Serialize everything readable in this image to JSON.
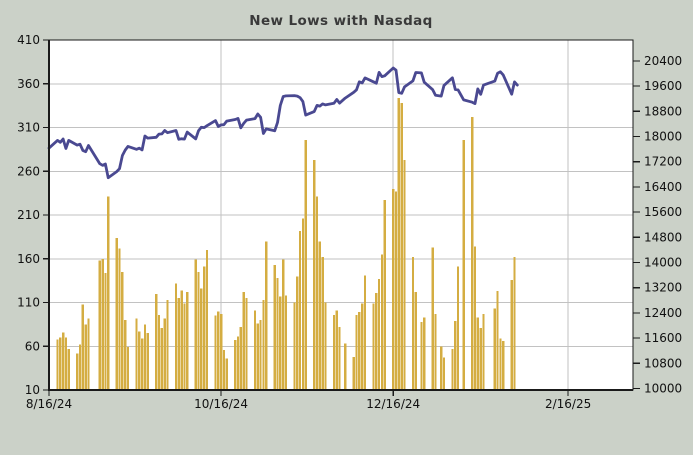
{
  "title": "New Lows with Nasdaq",
  "colors": {
    "background": "#cbd1c8",
    "plot_background": "#ffffff",
    "grid": "#c2c2c2",
    "axis": "#1a1a1a",
    "title_text": "#3a3a3a",
    "tick_text": "#111111",
    "bar": "#d4ad42",
    "line": "#4a4991"
  },
  "chart_data": {
    "type": "combo",
    "title": "New Lows with Nasdaq",
    "grid": true,
    "legend_position": "none",
    "x_axis": {
      "start": "2024-08-16",
      "end": "2025-03-11",
      "tick_labels": [
        "8/16/24",
        "10/16/24",
        "12/16/24",
        "2/16/25"
      ],
      "tick_dates": [
        "2024-08-16",
        "2024-10-16",
        "2024-12-16",
        "2025-02-16"
      ]
    },
    "left_axis": {
      "min": 10,
      "max": 410,
      "ticks": [
        410,
        360,
        310,
        260,
        210,
        160,
        110,
        60,
        10
      ]
    },
    "right_axis": {
      "plot_min": 9952,
      "plot_max": 21063,
      "ticks": [
        20400,
        19600,
        18800,
        18000,
        17200,
        16400,
        15600,
        14800,
        14000,
        13200,
        12400,
        11600,
        10800,
        10000
      ]
    },
    "series": [
      {
        "name": "New Lows",
        "type": "bar",
        "axis": "left",
        "points": [
          [
            "2024-08-19",
            68
          ],
          [
            "2024-08-20",
            70
          ],
          [
            "2024-08-21",
            76
          ],
          [
            "2024-08-22",
            70
          ],
          [
            "2024-08-23",
            57
          ],
          [
            "2024-08-26",
            52
          ],
          [
            "2024-08-27",
            62
          ],
          [
            "2024-08-28",
            108
          ],
          [
            "2024-08-29",
            85
          ],
          [
            "2024-08-30",
            92
          ],
          [
            "2024-09-03",
            158
          ],
          [
            "2024-09-04",
            160
          ],
          [
            "2024-09-05",
            144
          ],
          [
            "2024-09-06",
            231
          ],
          [
            "2024-09-09",
            184
          ],
          [
            "2024-09-10",
            172
          ],
          [
            "2024-09-11",
            145
          ],
          [
            "2024-09-12",
            90
          ],
          [
            "2024-09-13",
            59
          ],
          [
            "2024-09-16",
            92
          ],
          [
            "2024-09-17",
            77
          ],
          [
            "2024-09-18",
            69
          ],
          [
            "2024-09-19",
            85
          ],
          [
            "2024-09-20",
            75
          ],
          [
            "2024-09-23",
            120
          ],
          [
            "2024-09-24",
            96
          ],
          [
            "2024-09-25",
            81
          ],
          [
            "2024-09-26",
            92
          ],
          [
            "2024-09-27",
            113
          ],
          [
            "2024-09-30",
            132
          ],
          [
            "2024-10-01",
            115
          ],
          [
            "2024-10-02",
            124
          ],
          [
            "2024-10-03",
            109
          ],
          [
            "2024-10-04",
            122
          ],
          [
            "2024-10-07",
            159
          ],
          [
            "2024-10-08",
            145
          ],
          [
            "2024-10-09",
            126
          ],
          [
            "2024-10-10",
            151
          ],
          [
            "2024-10-11",
            170
          ],
          [
            "2024-10-14",
            95
          ],
          [
            "2024-10-15",
            100
          ],
          [
            "2024-10-16",
            97
          ],
          [
            "2024-10-17",
            56
          ],
          [
            "2024-10-18",
            46
          ],
          [
            "2024-10-21",
            67
          ],
          [
            "2024-10-22",
            71
          ],
          [
            "2024-10-23",
            82
          ],
          [
            "2024-10-24",
            122
          ],
          [
            "2024-10-25",
            115
          ],
          [
            "2024-10-28",
            101
          ],
          [
            "2024-10-29",
            86
          ],
          [
            "2024-10-30",
            90
          ],
          [
            "2024-10-31",
            113
          ],
          [
            "2024-11-01",
            180
          ],
          [
            "2024-11-04",
            153
          ],
          [
            "2024-11-05",
            138
          ],
          [
            "2024-11-06",
            117
          ],
          [
            "2024-11-07",
            159
          ],
          [
            "2024-11-08",
            118
          ],
          [
            "2024-11-11",
            110
          ],
          [
            "2024-11-12",
            140
          ],
          [
            "2024-11-13",
            192
          ],
          [
            "2024-11-14",
            206
          ],
          [
            "2024-11-15",
            296
          ],
          [
            "2024-11-18",
            273
          ],
          [
            "2024-11-19",
            231
          ],
          [
            "2024-11-20",
            180
          ],
          [
            "2024-11-21",
            162
          ],
          [
            "2024-11-22",
            110
          ],
          [
            "2024-11-25",
            96
          ],
          [
            "2024-11-26",
            101
          ],
          [
            "2024-11-27",
            82
          ],
          [
            "2024-11-29",
            63
          ],
          [
            "2024-12-02",
            48
          ],
          [
            "2024-12-03",
            96
          ],
          [
            "2024-12-04",
            99
          ],
          [
            "2024-12-05",
            109
          ],
          [
            "2024-12-06",
            141
          ],
          [
            "2024-12-09",
            109
          ],
          [
            "2024-12-10",
            121
          ],
          [
            "2024-12-11",
            137
          ],
          [
            "2024-12-12",
            165
          ],
          [
            "2024-12-13",
            227
          ],
          [
            "2024-12-16",
            240
          ],
          [
            "2024-12-17",
            237
          ],
          [
            "2024-12-18",
            344
          ],
          [
            "2024-12-19",
            338
          ],
          [
            "2024-12-20",
            273
          ],
          [
            "2024-12-23",
            162
          ],
          [
            "2024-12-24",
            122
          ],
          [
            "2024-12-26",
            88
          ],
          [
            "2024-12-27",
            93
          ],
          [
            "2024-12-30",
            173
          ],
          [
            "2024-12-31",
            97
          ],
          [
            "2025-01-02",
            60
          ],
          [
            "2025-01-03",
            47
          ],
          [
            "2025-01-06",
            57
          ],
          [
            "2025-01-07",
            89
          ],
          [
            "2025-01-08",
            151
          ],
          [
            "2025-01-10",
            296
          ],
          [
            "2025-01-13",
            322
          ],
          [
            "2025-01-14",
            174
          ],
          [
            "2025-01-15",
            93
          ],
          [
            "2025-01-16",
            81
          ],
          [
            "2025-01-17",
            97
          ],
          [
            "2025-01-21",
            103
          ],
          [
            "2025-01-22",
            123
          ],
          [
            "2025-01-23",
            69
          ],
          [
            "2025-01-24",
            66
          ],
          [
            "2025-01-27",
            136
          ],
          [
            "2025-01-28",
            162
          ]
        ]
      },
      {
        "name": "Nasdaq",
        "type": "line",
        "axis": "right",
        "points": [
          [
            "2024-08-16",
            17632
          ],
          [
            "2024-08-19",
            17876
          ],
          [
            "2024-08-20",
            17817
          ],
          [
            "2024-08-21",
            17919
          ],
          [
            "2024-08-22",
            17619
          ],
          [
            "2024-08-23",
            17877
          ],
          [
            "2024-08-26",
            17725
          ],
          [
            "2024-08-27",
            17754
          ],
          [
            "2024-08-28",
            17556
          ],
          [
            "2024-08-29",
            17516
          ],
          [
            "2024-08-30",
            17714
          ],
          [
            "2024-09-03",
            17136
          ],
          [
            "2024-09-04",
            17084
          ],
          [
            "2024-09-05",
            17127
          ],
          [
            "2024-09-06",
            16691
          ],
          [
            "2024-09-09",
            16884
          ],
          [
            "2024-09-10",
            16976
          ],
          [
            "2024-09-11",
            17396
          ],
          [
            "2024-09-12",
            17569
          ],
          [
            "2024-09-13",
            17684
          ],
          [
            "2024-09-16",
            17592
          ],
          [
            "2024-09-17",
            17628
          ],
          [
            "2024-09-18",
            17573
          ],
          [
            "2024-09-19",
            18014
          ],
          [
            "2024-09-20",
            17948
          ],
          [
            "2024-09-23",
            17974
          ],
          [
            "2024-09-24",
            18075
          ],
          [
            "2024-09-25",
            18082
          ],
          [
            "2024-09-26",
            18190
          ],
          [
            "2024-09-27",
            18119
          ],
          [
            "2024-09-30",
            18189
          ],
          [
            "2024-10-01",
            17910
          ],
          [
            "2024-10-02",
            17925
          ],
          [
            "2024-10-03",
            17918
          ],
          [
            "2024-10-04",
            18138
          ],
          [
            "2024-10-07",
            17924
          ],
          [
            "2024-10-08",
            18182
          ],
          [
            "2024-10-09",
            18292
          ],
          [
            "2024-10-10",
            18282
          ],
          [
            "2024-10-11",
            18343
          ],
          [
            "2024-10-14",
            18503
          ],
          [
            "2024-10-15",
            18316
          ],
          [
            "2024-10-16",
            18368
          ],
          [
            "2024-10-17",
            18374
          ],
          [
            "2024-10-18",
            18490
          ],
          [
            "2024-10-21",
            18540
          ],
          [
            "2024-10-22",
            18573
          ],
          [
            "2024-10-23",
            18277
          ],
          [
            "2024-10-24",
            18415
          ],
          [
            "2024-10-25",
            18519
          ],
          [
            "2024-10-28",
            18568
          ],
          [
            "2024-10-29",
            18713
          ],
          [
            "2024-10-30",
            18608
          ],
          [
            "2024-10-31",
            18095
          ],
          [
            "2024-11-01",
            18240
          ],
          [
            "2024-11-04",
            18180
          ],
          [
            "2024-11-05",
            18440
          ],
          [
            "2024-11-06",
            18983
          ],
          [
            "2024-11-07",
            19270
          ],
          [
            "2024-11-08",
            19287
          ],
          [
            "2024-11-11",
            19299
          ],
          [
            "2024-11-12",
            19281
          ],
          [
            "2024-11-13",
            19231
          ],
          [
            "2024-11-14",
            19108
          ],
          [
            "2024-11-15",
            18680
          ],
          [
            "2024-11-18",
            18791
          ],
          [
            "2024-11-19",
            18987
          ],
          [
            "2024-11-20",
            18966
          ],
          [
            "2024-11-21",
            19035
          ],
          [
            "2024-11-22",
            19003
          ],
          [
            "2024-11-25",
            19055
          ],
          [
            "2024-11-26",
            19175
          ],
          [
            "2024-11-27",
            19060
          ],
          [
            "2024-11-29",
            19218
          ],
          [
            "2024-12-02",
            19404
          ],
          [
            "2024-12-03",
            19481
          ],
          [
            "2024-12-04",
            19735
          ],
          [
            "2024-12-05",
            19700
          ],
          [
            "2024-12-06",
            19860
          ],
          [
            "2024-12-09",
            19737
          ],
          [
            "2024-12-10",
            19687
          ],
          [
            "2024-12-11",
            20034
          ],
          [
            "2024-12-12",
            19902
          ],
          [
            "2024-12-13",
            19927
          ],
          [
            "2024-12-16",
            20173
          ],
          [
            "2024-12-17",
            20109
          ],
          [
            "2024-12-18",
            19393
          ],
          [
            "2024-12-19",
            19372
          ],
          [
            "2024-12-20",
            19573
          ],
          [
            "2024-12-23",
            19764
          ],
          [
            "2024-12-24",
            20031
          ],
          [
            "2024-12-26",
            20020
          ],
          [
            "2024-12-27",
            19722
          ],
          [
            "2024-12-30",
            19486
          ],
          [
            "2024-12-31",
            19311
          ],
          [
            "2025-01-02",
            19281
          ],
          [
            "2025-01-03",
            19622
          ],
          [
            "2025-01-06",
            19864
          ],
          [
            "2025-01-07",
            19490
          ],
          [
            "2025-01-08",
            19478
          ],
          [
            "2025-01-10",
            19162
          ],
          [
            "2025-01-13",
            19088
          ],
          [
            "2025-01-14",
            19044
          ],
          [
            "2025-01-15",
            19511
          ],
          [
            "2025-01-16",
            19338
          ],
          [
            "2025-01-17",
            19630
          ],
          [
            "2025-01-21",
            19757
          ],
          [
            "2025-01-22",
            20009
          ],
          [
            "2025-01-23",
            20053
          ],
          [
            "2025-01-24",
            19954
          ],
          [
            "2025-01-27",
            19341
          ],
          [
            "2025-01-28",
            19733
          ],
          [
            "2025-01-29",
            19632
          ]
        ]
      }
    ]
  }
}
